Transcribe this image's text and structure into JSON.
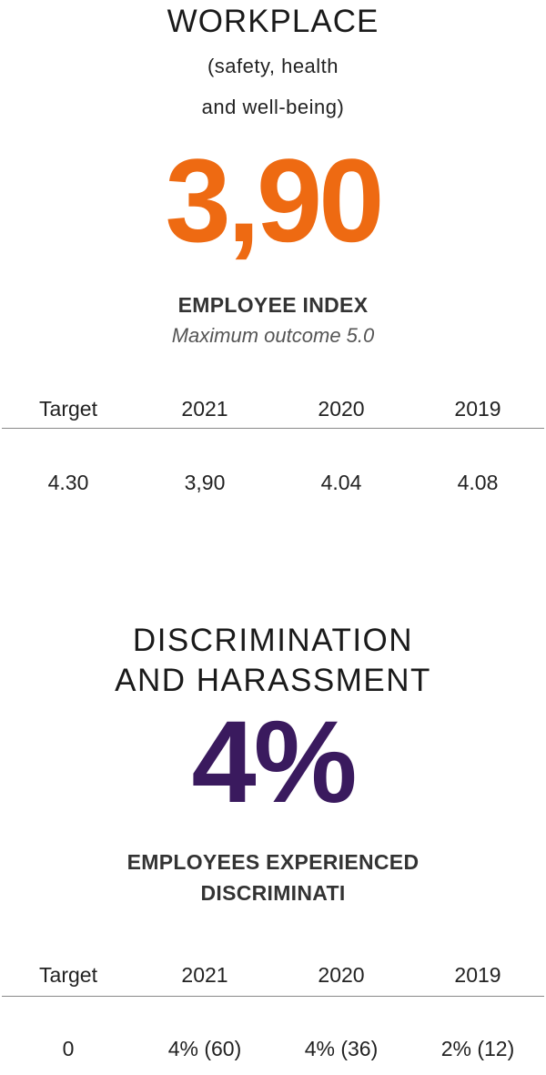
{
  "workplace": {
    "title": "WORKPLACE",
    "subtitle_line1": "(safety, health",
    "subtitle_line2": "and well-being)",
    "big_value": "3,90",
    "big_value_color": "#ee6a12",
    "metric_label": "EMPLOYEE INDEX",
    "note": "Maximum outcome 5.0",
    "table": {
      "headers": [
        "Target",
        "2021",
        "2020",
        "2019"
      ],
      "values": [
        "4.30",
        "3,90",
        "4.04",
        "4.08"
      ]
    }
  },
  "discrimination": {
    "title_line1": "DISCRIMINATION",
    "title_line2": "AND HARASSMENT",
    "big_value": "4%",
    "big_value_color": "#3a1a5e",
    "metric_label_line1": "EMPLOYEES EXPERIENCED",
    "metric_label_line2": "DISCRIMINATI",
    "table": {
      "headers": [
        "Target",
        "2021",
        "2020",
        "2019"
      ],
      "values": [
        "0",
        "4% (60)",
        "4% (36)",
        "2% (12)"
      ]
    }
  }
}
